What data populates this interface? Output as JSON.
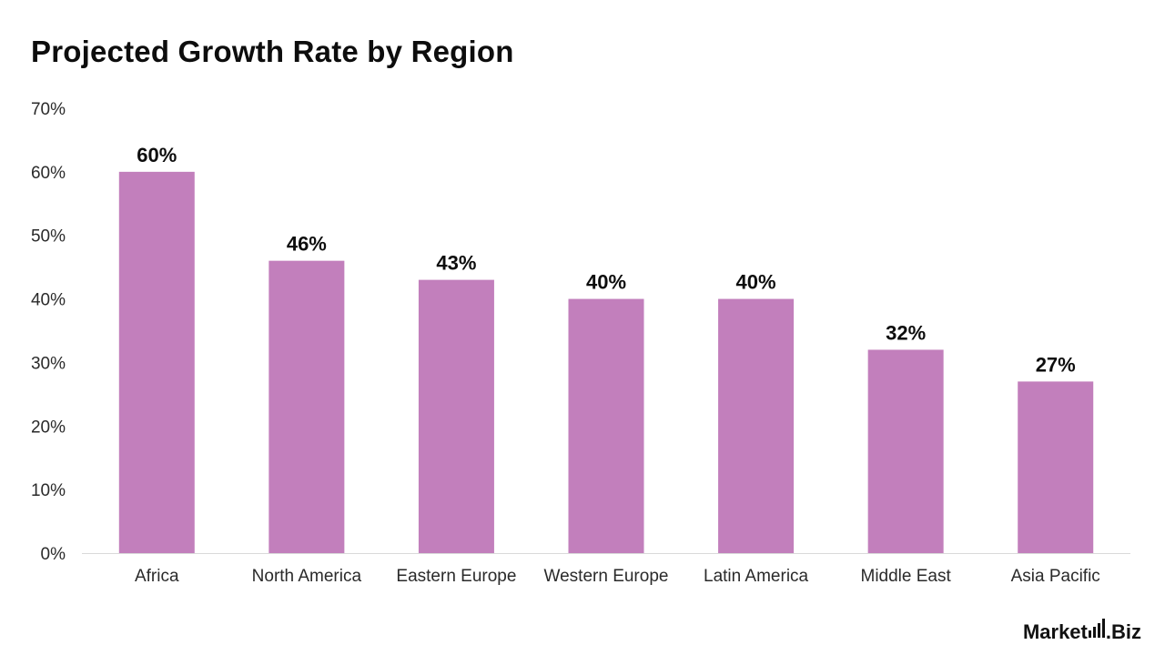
{
  "chart_data": {
    "type": "bar",
    "title": "Projected Growth Rate by Region",
    "xlabel": "",
    "ylabel": "",
    "categories": [
      "Africa",
      "North America",
      "Eastern Europe",
      "Western Europe",
      "Latin America",
      "Middle East",
      "Asia Pacific"
    ],
    "values": [
      60,
      46,
      43,
      40,
      40,
      32,
      27
    ],
    "data_labels": [
      "60%",
      "46%",
      "43%",
      "40%",
      "40%",
      "32%",
      "27%"
    ],
    "ylim": [
      0,
      70
    ],
    "y_ticks": [
      0,
      10,
      20,
      30,
      40,
      50,
      60,
      70
    ],
    "y_tick_labels": [
      "0%",
      "10%",
      "20%",
      "30%",
      "40%",
      "50%",
      "60%",
      "70%"
    ],
    "grid": false,
    "legend": "none",
    "bar_color": "#c27fbc",
    "axis_color": "#d9d9d9"
  },
  "branding": {
    "name_left": "Market",
    "name_right": ".Biz",
    "logo_icon": "signal-bars-icon"
  }
}
